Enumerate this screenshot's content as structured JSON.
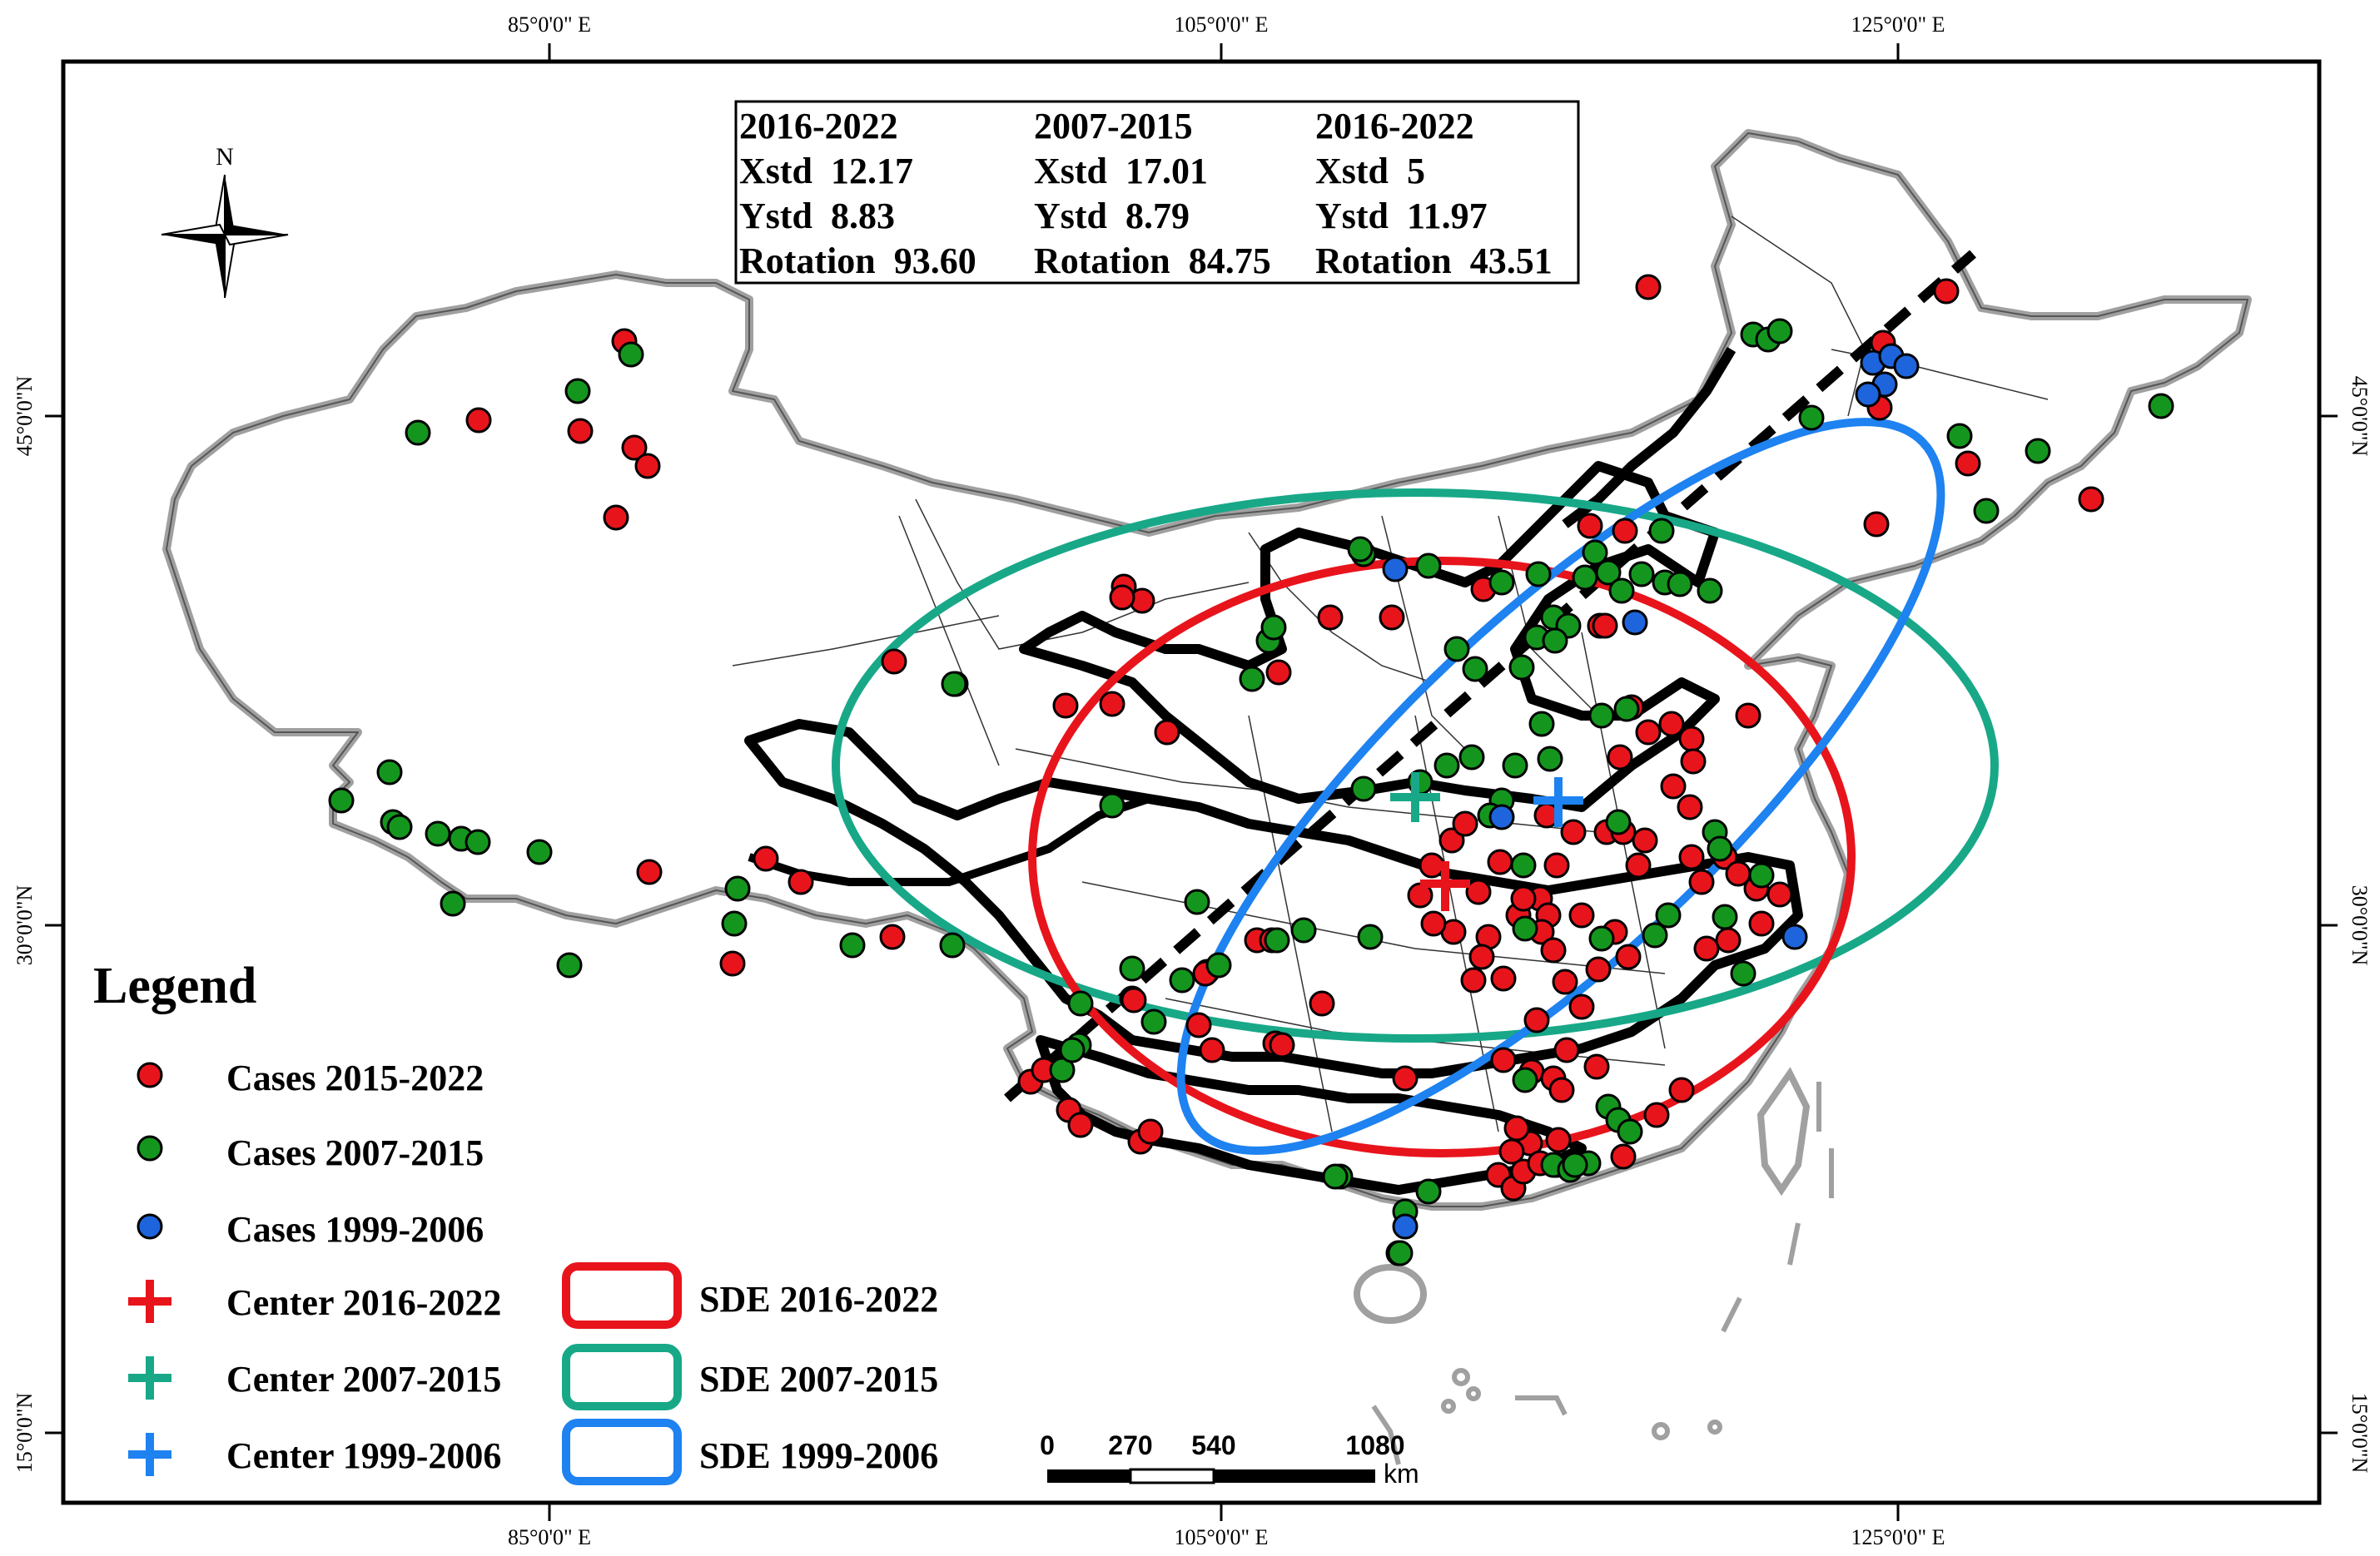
{
  "axes": {
    "top_ticks": [
      "85°0'0\" E",
      "105°0'0\" E",
      "125°0'0\" E"
    ],
    "bottom_ticks": [
      "85°0'0\" E",
      "105°0'0\" E",
      "125°0'0\" E"
    ],
    "left_ticks": [
      "45°0'0\"N",
      "30°0'0\"N",
      "15°0'0\"N"
    ],
    "right_ticks": [
      "45°0'0\"N",
      "30°0'0\"N",
      "15°0'0\"N"
    ]
  },
  "north_arrow": {
    "label": "N"
  },
  "stats_box": {
    "columns": [
      {
        "period": "2016-2022",
        "xstd": "Xstd  12.17",
        "ystd": "Ystd  8.83",
        "rotation": "Rotation  93.60"
      },
      {
        "period": "2007-2015",
        "xstd": "Xstd  17.01",
        "ystd": "Ystd  8.79",
        "rotation": "Rotation  84.75"
      },
      {
        "period": "2016-2022",
        "xstd": "Xstd  5",
        "ystd": "Ystd  11.97",
        "rotation": "Rotation  43.51"
      }
    ]
  },
  "legend": {
    "title": "Legend",
    "cases_2015_2022": "Cases 2015-2022",
    "cases_2007_2015": "Cases 2007-2015",
    "cases_1999_2006": "Cases 1999-2006",
    "center_2016_2022": "Center 2016-2022",
    "center_2007_2015": "Center 2007-2015",
    "center_1999_2006": "Center 1999-2006",
    "sde_2016_2022": "SDE 2016-2022",
    "sde_2007_2015": "SDE 2007-2015",
    "sde_1999_2006": "SDE 1999-2006"
  },
  "scale_bar": {
    "ticks": [
      "0",
      "270",
      "540",
      "1080"
    ],
    "unit": "km"
  },
  "colors": {
    "red": "#e8141c",
    "green": "#14961e",
    "blue": "#1e64dc",
    "sde_red": "#e8141c",
    "sde_green": "#18a888",
    "sde_blue": "#1e82f0",
    "border_gray": "#a0a0a0"
  }
}
